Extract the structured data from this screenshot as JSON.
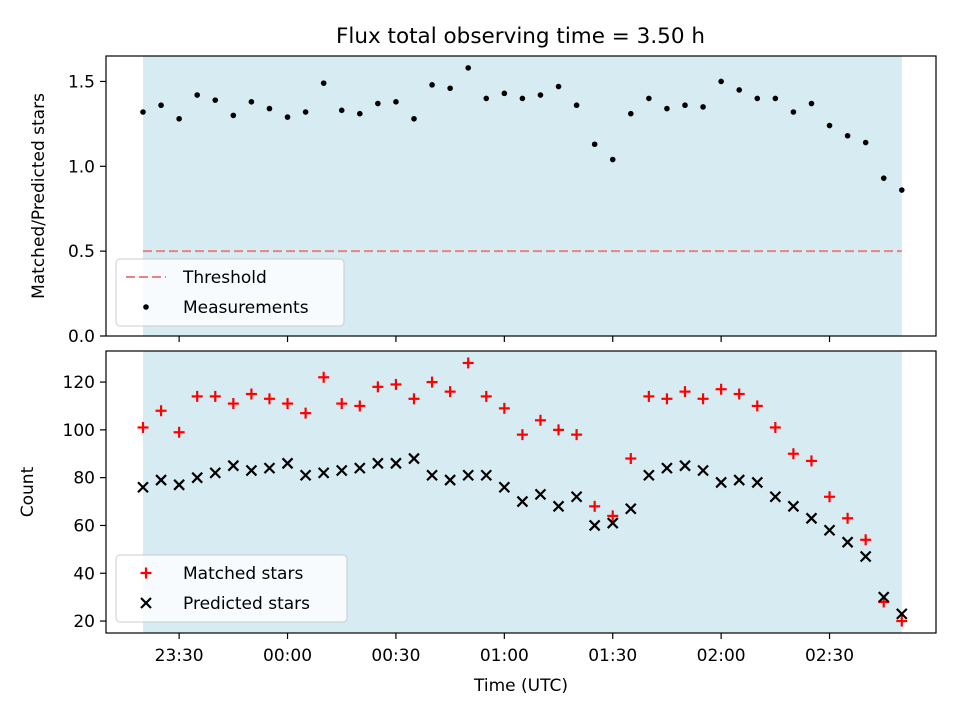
{
  "title": "Flux total observing time = 3.50 h",
  "colors": {
    "band": "#add8e6",
    "threshold": "#f08080",
    "matched": "#ff0000",
    "predicted": "#000000",
    "measurement": "#000000"
  },
  "chart_data": [
    {
      "type": "scatter",
      "ylabel": "Matched/Predicted stars",
      "ylim": [
        0,
        1.65
      ],
      "yticks": [
        "0.0",
        "0.5",
        "1.0",
        "1.5"
      ],
      "shaded_span_x": [
        "23:20",
        "02:50"
      ],
      "threshold": {
        "name": "Threshold",
        "y": 0.5
      },
      "legend": {
        "placement": "lower-left",
        "entries": [
          "Threshold",
          "Measurements"
        ]
      },
      "series": [
        {
          "name": "Measurements",
          "x": [
            "23:20",
            "23:25",
            "23:30",
            "23:35",
            "23:40",
            "23:45",
            "23:50",
            "23:55",
            "00:00",
            "00:05",
            "00:10",
            "00:15",
            "00:20",
            "00:25",
            "00:30",
            "00:35",
            "00:40",
            "00:45",
            "00:50",
            "00:55",
            "01:00",
            "01:05",
            "01:10",
            "01:15",
            "01:20",
            "01:25",
            "01:30",
            "01:35",
            "01:40",
            "01:45",
            "01:50",
            "01:55",
            "02:00",
            "02:05",
            "02:10",
            "02:15",
            "02:20",
            "02:25",
            "02:30",
            "02:35",
            "02:40",
            "02:45",
            "02:50"
          ],
          "y": [
            1.32,
            1.36,
            1.28,
            1.42,
            1.39,
            1.3,
            1.38,
            1.34,
            1.29,
            1.32,
            1.49,
            1.33,
            1.31,
            1.37,
            1.38,
            1.28,
            1.48,
            1.46,
            1.58,
            1.4,
            1.43,
            1.4,
            1.42,
            1.47,
            1.36,
            1.13,
            1.04,
            1.31,
            1.4,
            1.34,
            1.36,
            1.35,
            1.5,
            1.45,
            1.4,
            1.4,
            1.32,
            1.37,
            1.24,
            1.18,
            1.14,
            0.93,
            0.86
          ]
        }
      ]
    },
    {
      "type": "scatter",
      "xlabel": "Time (UTC)",
      "ylabel": "Count",
      "ylim": [
        15,
        133
      ],
      "yticks": [
        "20",
        "40",
        "60",
        "80",
        "100",
        "120"
      ],
      "xticks": [
        "23:30",
        "00:00",
        "00:30",
        "01:00",
        "01:30",
        "02:00",
        "02:30"
      ],
      "shaded_span_x": [
        "23:20",
        "02:50"
      ],
      "legend": {
        "placement": "lower-left",
        "entries": [
          "Matched stars",
          "Predicted stars"
        ]
      },
      "series": [
        {
          "name": "Matched stars",
          "marker": "plus",
          "x": [
            "23:20",
            "23:25",
            "23:30",
            "23:35",
            "23:40",
            "23:45",
            "23:50",
            "23:55",
            "00:00",
            "00:05",
            "00:10",
            "00:15",
            "00:20",
            "00:25",
            "00:30",
            "00:35",
            "00:40",
            "00:45",
            "00:50",
            "00:55",
            "01:00",
            "01:05",
            "01:10",
            "01:15",
            "01:20",
            "01:25",
            "01:30",
            "01:35",
            "01:40",
            "01:45",
            "01:50",
            "01:55",
            "02:00",
            "02:05",
            "02:10",
            "02:15",
            "02:20",
            "02:25",
            "02:30",
            "02:35",
            "02:40",
            "02:45",
            "02:50"
          ],
          "y": [
            101,
            108,
            99,
            114,
            114,
            111,
            115,
            113,
            111,
            107,
            122,
            111,
            110,
            118,
            119,
            113,
            120,
            116,
            128,
            114,
            109,
            98,
            104,
            100,
            98,
            68,
            64,
            88,
            114,
            113,
            116,
            113,
            117,
            115,
            110,
            101,
            90,
            87,
            72,
            63,
            54,
            28,
            20
          ]
        },
        {
          "name": "Predicted stars",
          "marker": "x",
          "x": [
            "23:20",
            "23:25",
            "23:30",
            "23:35",
            "23:40",
            "23:45",
            "23:50",
            "23:55",
            "00:00",
            "00:05",
            "00:10",
            "00:15",
            "00:20",
            "00:25",
            "00:30",
            "00:35",
            "00:40",
            "00:45",
            "00:50",
            "00:55",
            "01:00",
            "01:05",
            "01:10",
            "01:15",
            "01:20",
            "01:25",
            "01:30",
            "01:35",
            "01:40",
            "01:45",
            "01:50",
            "01:55",
            "02:00",
            "02:05",
            "02:10",
            "02:15",
            "02:20",
            "02:25",
            "02:30",
            "02:35",
            "02:40",
            "02:45",
            "02:50"
          ],
          "y": [
            76,
            79,
            77,
            80,
            82,
            85,
            83,
            84,
            86,
            81,
            82,
            83,
            84,
            86,
            86,
            88,
            81,
            79,
            81,
            81,
            76,
            70,
            73,
            68,
            72,
            60,
            61,
            67,
            81,
            84,
            85,
            83,
            78,
            79,
            78,
            72,
            68,
            63,
            58,
            53,
            47,
            30,
            23
          ]
        }
      ]
    }
  ]
}
